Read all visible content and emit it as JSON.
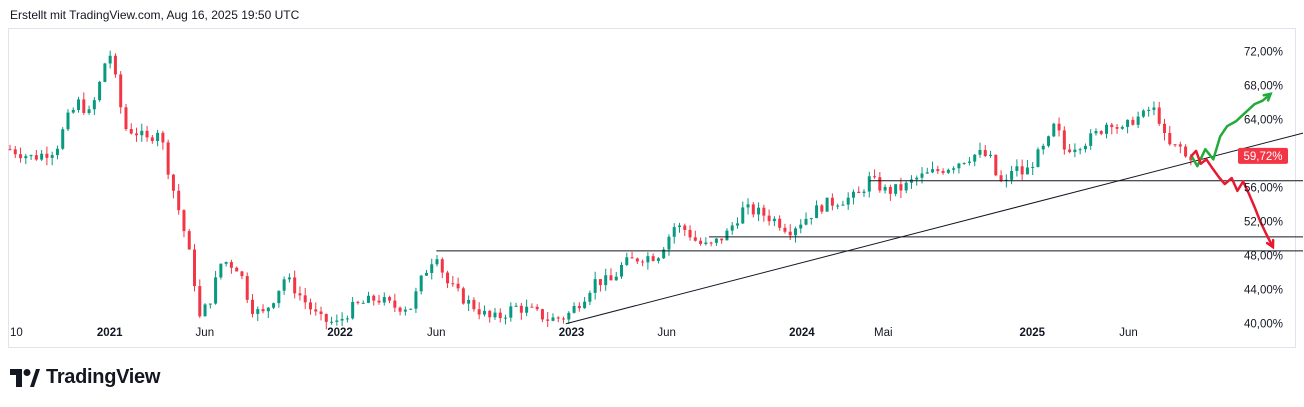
{
  "header": {
    "text": "Erstellt mit TradingView.com, Aug 16, 2025 19:50 UTC"
  },
  "brand": {
    "name": "TradingView",
    "logo_icon": "tradingview-logo-icon",
    "color": "#131722"
  },
  "colors": {
    "up": "#089981",
    "down": "#f23645",
    "projection_up": "#22ab3a",
    "projection_down": "#e8182f",
    "line": "#131722"
  },
  "chart_data": {
    "type": "candlestick",
    "y_unit": "%",
    "ylim": [
      37.5,
      74.5
    ],
    "y_ticks": [
      {
        "value": 72,
        "label": "72,00%"
      },
      {
        "value": 68,
        "label": "68,00%"
      },
      {
        "value": 64,
        "label": "64,00%"
      },
      {
        "value": 56,
        "label": "56,00%"
      },
      {
        "value": 52,
        "label": "52,00%"
      },
      {
        "value": 48,
        "label": "48,00%"
      },
      {
        "value": 44,
        "label": "44,00%"
      },
      {
        "value": 40,
        "label": "40,00%"
      }
    ],
    "x_ticks": [
      {
        "label": "10",
        "t": 0.0,
        "bold": false
      },
      {
        "label": "2021",
        "t": 8.7,
        "bold": true
      },
      {
        "label": "Jun",
        "t": 17.0,
        "bold": false
      },
      {
        "label": "2022",
        "t": 28.8,
        "bold": true
      },
      {
        "label": "Jun",
        "t": 37.2,
        "bold": false
      },
      {
        "label": "2023",
        "t": 49.0,
        "bold": true
      },
      {
        "label": "Jun",
        "t": 57.3,
        "bold": false
      },
      {
        "label": "2024",
        "t": 69.1,
        "bold": true
      },
      {
        "label": "Mai",
        "t": 76.2,
        "bold": false
      },
      {
        "label": "2025",
        "t": 89.2,
        "bold": true
      },
      {
        "label": "Jun",
        "t": 97.6,
        "bold": false
      }
    ],
    "last_price": {
      "value": 59.72,
      "label": "59,72%"
    },
    "anchors": [
      [
        0,
        60.5
      ],
      [
        2,
        59.5
      ],
      [
        4,
        60.5
      ],
      [
        5,
        64
      ],
      [
        6,
        66
      ],
      [
        7,
        64.5
      ],
      [
        8,
        69
      ],
      [
        8.6,
        72.5
      ],
      [
        9.3,
        68
      ],
      [
        10,
        63
      ],
      [
        11,
        62.5
      ],
      [
        12,
        61.5
      ],
      [
        13,
        63
      ],
      [
        14,
        57
      ],
      [
        15,
        52
      ],
      [
        16,
        46
      ],
      [
        16.5,
        40.5
      ],
      [
        17.5,
        43
      ],
      [
        18.5,
        47.5
      ],
      [
        20,
        46.5
      ],
      [
        21,
        42
      ],
      [
        22,
        41
      ],
      [
        23,
        43
      ],
      [
        24,
        45.5
      ],
      [
        25.5,
        43
      ],
      [
        27,
        40.5
      ],
      [
        28.5,
        40
      ],
      [
        30,
        42
      ],
      [
        32,
        43
      ],
      [
        33.5,
        42
      ],
      [
        35,
        42
      ],
      [
        36,
        45.5
      ],
      [
        37.2,
        48.5
      ],
      [
        38,
        45
      ],
      [
        39.5,
        43
      ],
      [
        41,
        41.5
      ],
      [
        42,
        40.5
      ],
      [
        43,
        41
      ],
      [
        44,
        42
      ],
      [
        45.5,
        41.5
      ],
      [
        47,
        40.5
      ],
      [
        48.5,
        40.8
      ],
      [
        50,
        43
      ],
      [
        51,
        45
      ],
      [
        52.5,
        45
      ],
      [
        53.5,
        47
      ],
      [
        55,
        47.8
      ],
      [
        56.5,
        48
      ],
      [
        58,
        51.5
      ],
      [
        59,
        51
      ],
      [
        60,
        49.5
      ],
      [
        61,
        49
      ],
      [
        62.5,
        50.5
      ],
      [
        64,
        53.5
      ],
      [
        65.5,
        53
      ],
      [
        67,
        52
      ],
      [
        68,
        51
      ],
      [
        69,
        52
      ],
      [
        70,
        53
      ],
      [
        71,
        54
      ],
      [
        72.5,
        54.5
      ],
      [
        74,
        55
      ],
      [
        75,
        57
      ],
      [
        76.5,
        55.5
      ],
      [
        78,
        56
      ],
      [
        79,
        57
      ],
      [
        80,
        57.5
      ],
      [
        81,
        58
      ],
      [
        82,
        58.5
      ],
      [
        83.5,
        59.5
      ],
      [
        84.5,
        60
      ],
      [
        85.5,
        59.5
      ],
      [
        86,
        57.5
      ],
      [
        86.8,
        56
      ],
      [
        87.5,
        58.5
      ],
      [
        88.5,
        57.5
      ],
      [
        89.5,
        59.5
      ],
      [
        90.5,
        61
      ],
      [
        91.2,
        63.5
      ],
      [
        92,
        60.5
      ],
      [
        93,
        61
      ],
      [
        94,
        61.5
      ],
      [
        95,
        62.5
      ],
      [
        96,
        64
      ],
      [
        97,
        62.5
      ],
      [
        98,
        64
      ],
      [
        99,
        64.5
      ],
      [
        99.6,
        65.5
      ],
      [
        100.3,
        64
      ],
      [
        100.8,
        61.5
      ],
      [
        101.4,
        60.5
      ],
      [
        102,
        61
      ],
      [
        102.6,
        59.5
      ],
      [
        103.1,
        59.72
      ]
    ],
    "projection_up": [
      [
        103.1,
        59.72
      ],
      [
        103.6,
        58.5
      ],
      [
        104.3,
        60.5
      ],
      [
        105.0,
        59.3
      ],
      [
        105.6,
        62
      ],
      [
        106.2,
        63.2
      ],
      [
        107.0,
        63.8
      ],
      [
        107.8,
        64.8
      ],
      [
        108.6,
        65.8
      ],
      [
        109.3,
        66.2
      ],
      [
        110.0,
        67.0
      ]
    ],
    "projection_down": [
      [
        103.1,
        59.72
      ],
      [
        103.5,
        60.3
      ],
      [
        103.9,
        58.8
      ],
      [
        104.4,
        59.3
      ],
      [
        104.9,
        58.3
      ],
      [
        105.5,
        57.2
      ],
      [
        106.0,
        56.4
      ],
      [
        106.6,
        57.1
      ],
      [
        107.1,
        55.6
      ],
      [
        107.6,
        56.7
      ],
      [
        108.1,
        55.3
      ],
      [
        108.6,
        53.7
      ],
      [
        109.1,
        52.0
      ],
      [
        109.6,
        50.6
      ],
      [
        110.2,
        49.0
      ]
    ],
    "support_lines": [
      {
        "type": "horizontal",
        "value": 56.8,
        "t_start": 75.0
      },
      {
        "type": "horizontal",
        "value": 50.2,
        "t_start": 61.0
      },
      {
        "type": "horizontal",
        "value": 48.55,
        "t_start": 37.2
      }
    ],
    "trend_line": {
      "from": [
        48.5,
        40.0
      ],
      "to": [
        112.0,
        62.1
      ]
    },
    "t_range": [
      0,
      113
    ],
    "grid": false,
    "legend": "none"
  }
}
